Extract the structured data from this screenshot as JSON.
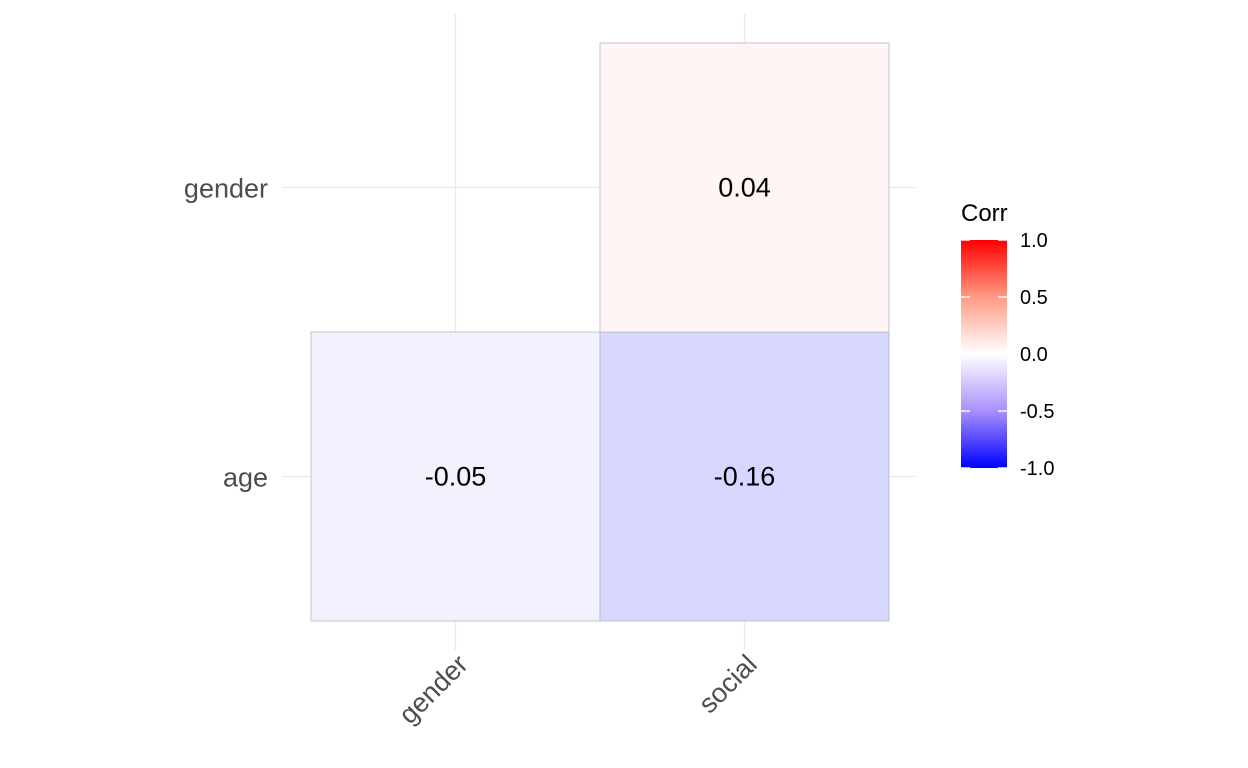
{
  "chart_data": {
    "type": "heatmap",
    "title": "",
    "xlabel": "",
    "ylabel": "",
    "x_categories": [
      "gender",
      "social"
    ],
    "y_categories": [
      "age",
      "gender"
    ],
    "cells": [
      {
        "x": "gender",
        "y": "age",
        "value": -0.05,
        "label": "-0.05"
      },
      {
        "x": "social",
        "y": "age",
        "value": -0.16,
        "label": "-0.16"
      },
      {
        "x": "social",
        "y": "gender",
        "value": 0.04,
        "label": "0.04"
      }
    ],
    "legend": {
      "title": "Corr",
      "position": "right",
      "range": [
        -1.0,
        1.0
      ],
      "ticks": [
        {
          "value": 1.0,
          "label": "1.0"
        },
        {
          "value": 0.5,
          "label": "0.5"
        },
        {
          "value": 0.0,
          "label": "0.0"
        },
        {
          "value": -0.5,
          "label": "-0.5"
        },
        {
          "value": -1.0,
          "label": "-1.0"
        }
      ],
      "colors": {
        "low": "#0000ff",
        "mid": "#ffffff",
        "high": "#ff0000"
      }
    },
    "grid": true
  }
}
